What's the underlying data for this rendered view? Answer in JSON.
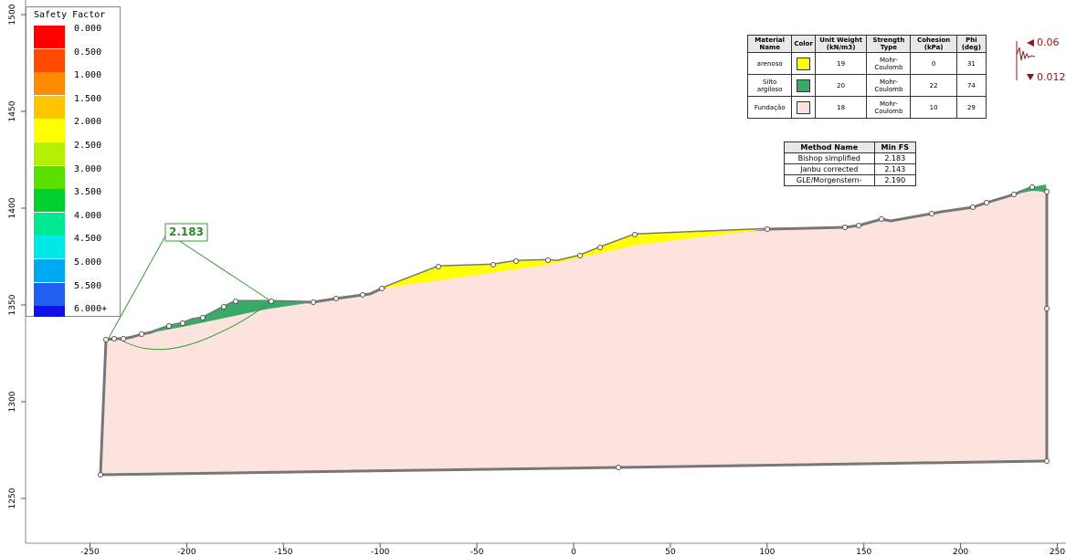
{
  "legend": {
    "title": "Safety Factor",
    "levels": [
      {
        "label": "0.000",
        "color": "#ff0000"
      },
      {
        "label": "0.500",
        "color": "#ff4a00"
      },
      {
        "label": "1.000",
        "color": "#ff8c00"
      },
      {
        "label": "1.500",
        "color": "#ffc400"
      },
      {
        "label": "2.000",
        "color": "#ffff00"
      },
      {
        "label": "2.500",
        "color": "#b4f000"
      },
      {
        "label": "3.000",
        "color": "#5ae000"
      },
      {
        "label": "3.500",
        "color": "#00d030"
      },
      {
        "label": "4.000",
        "color": "#00e890"
      },
      {
        "label": "4.500",
        "color": "#00e8e8"
      },
      {
        "label": "5.000",
        "color": "#00a8f0"
      },
      {
        "label": "5.500",
        "color": "#2060f0"
      },
      {
        "label": "6.000+",
        "color": "#1010e8"
      }
    ]
  },
  "materials": {
    "headers": [
      "Material Name",
      "Color",
      "Unit Weight (kN/m3)",
      "Strength Type",
      "Cohesion (kPa)",
      "Phi (deg)"
    ],
    "rows": [
      {
        "name": "arenoso",
        "color": "#ffff00",
        "unit_weight": 19,
        "strength_type": "Mohr-Coulomb",
        "cohesion": 0,
        "phi": 31
      },
      {
        "name": "Silto argiloso",
        "color": "#3aaa6a",
        "unit_weight": 20,
        "strength_type": "Mohr-Coulomb",
        "cohesion": 22,
        "phi": 74
      },
      {
        "name": "Fundação",
        "color": "#fde3de",
        "unit_weight": 18,
        "strength_type": "Mohr-Coulomb",
        "cohesion": 10,
        "phi": 29
      }
    ]
  },
  "methods": {
    "headers": [
      "Method Name",
      "Min FS"
    ],
    "rows": [
      [
        "Bishop simplified",
        "2.183"
      ],
      [
        "Janbu corrected",
        "2.143"
      ],
      [
        "GLE/Morgenstern-",
        "2.190"
      ]
    ]
  },
  "fs_label": "2.183",
  "seismic": {
    "horizontal": "0.06",
    "vertical": "0.012"
  },
  "axes": {
    "xticks": [
      -250,
      -200,
      -150,
      -100,
      -50,
      0,
      50,
      100,
      150,
      200,
      250
    ],
    "yticks": [
      1250,
      1300,
      1350,
      1400,
      1450,
      1500
    ]
  }
}
